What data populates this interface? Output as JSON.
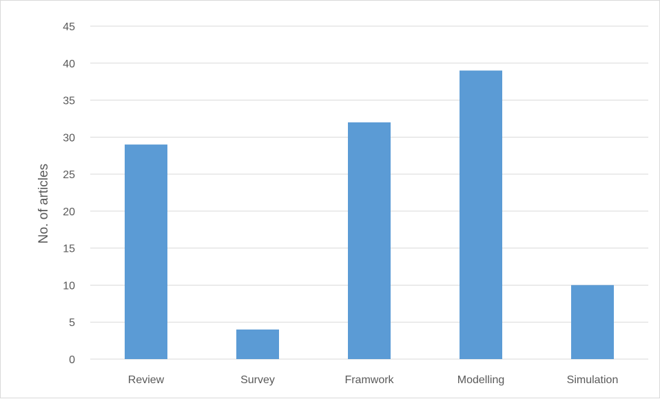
{
  "chart_data": {
    "type": "bar",
    "title": "",
    "xlabel": "",
    "ylabel": "No. of articles",
    "categories": [
      "Review",
      "Survey",
      "Framwork",
      "Modelling",
      "Simulation"
    ],
    "values": [
      29,
      4,
      32,
      39,
      10
    ],
    "ylim": [
      0,
      45
    ],
    "yticks": [
      0,
      5,
      10,
      15,
      20,
      25,
      30,
      35,
      40,
      45
    ],
    "grid": true,
    "legend": "none",
    "bar_color": "#5b9bd5",
    "grid_color": "#d9d9d9"
  }
}
